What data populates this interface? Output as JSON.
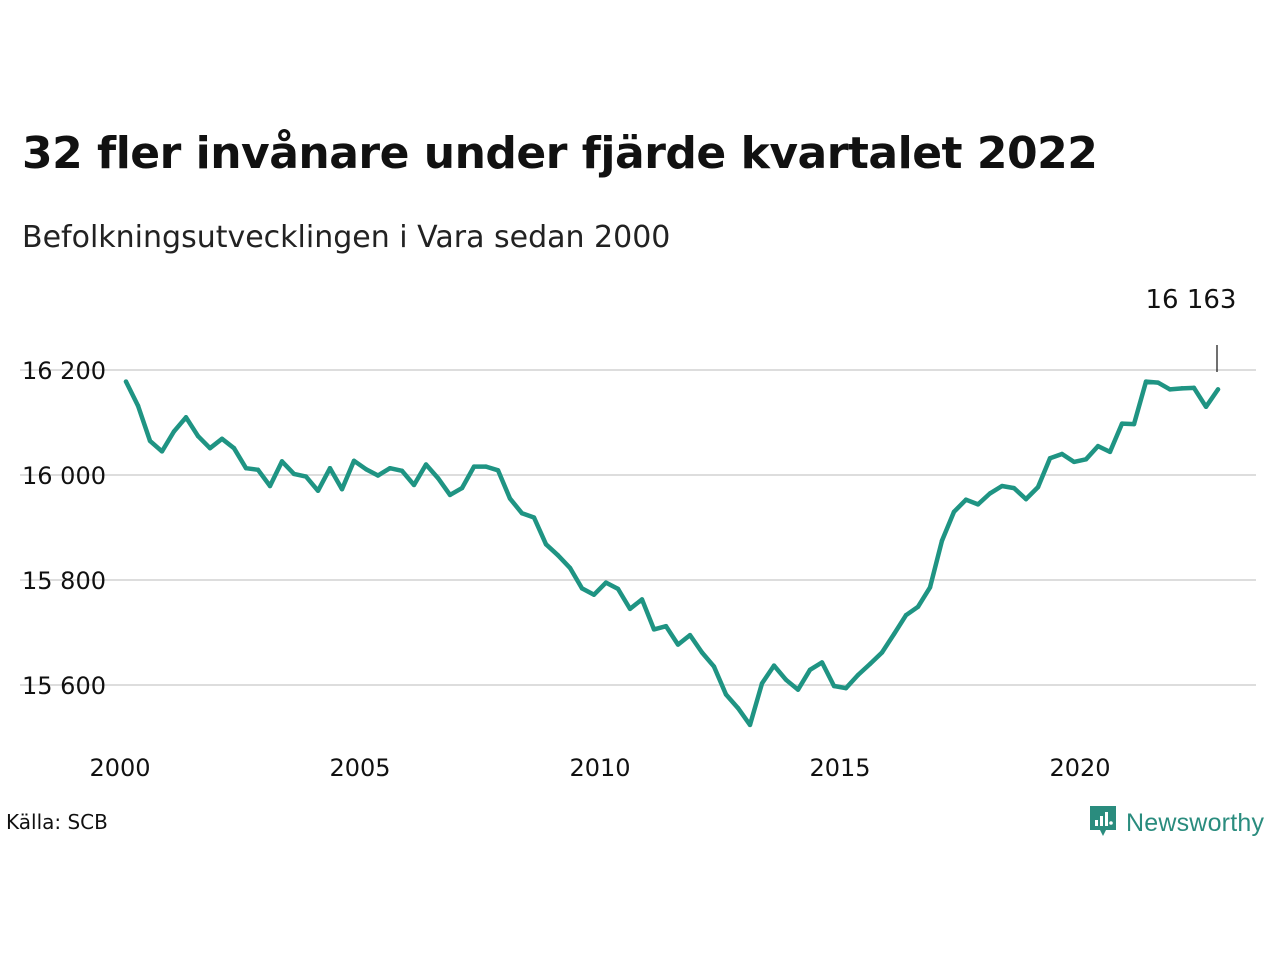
{
  "title": "32 fler invånare under fjärde kvartalet 2022",
  "subtitle": "Befolkningsutvecklingen i Vara sedan 2000",
  "source": "Källa: SCB",
  "brand": {
    "name": "Newsworthy",
    "icon": "newsworthy-logo-icon"
  },
  "colors": {
    "line": "#1f9483",
    "grid": "#dddddd",
    "brand": "#2a8c7e"
  },
  "chart_data": {
    "type": "line",
    "title": "32 fler invånare under fjärde kvartalet 2022",
    "subtitle": "Befolkningsutvecklingen i Vara sedan 2000",
    "xlabel": "",
    "ylabel": "",
    "xlim": [
      2000,
      2023.75
    ],
    "ylim": [
      15500,
      16250
    ],
    "x_ticks": [
      2000,
      2005,
      2010,
      2015,
      2020
    ],
    "y_ticks": [
      15600,
      15800,
      16000,
      16200
    ],
    "y_tick_labels": [
      "15 600",
      "15 800",
      "16 000",
      "16 200"
    ],
    "grid": true,
    "annotation": {
      "label": "16 163",
      "x": 2022.875,
      "y": 16163
    },
    "series": [
      {
        "x": [
          2000.125,
          2000.375,
          2000.625,
          2000.875,
          2001.125,
          2001.375,
          2001.625,
          2001.875,
          2002.125,
          2002.375,
          2002.625,
          2002.875,
          2003.125,
          2003.375,
          2003.625,
          2003.875,
          2004.125,
          2004.375,
          2004.625,
          2004.875,
          2005.125,
          2005.375,
          2005.625,
          2005.875,
          2006.125,
          2006.375,
          2006.625,
          2006.875,
          2007.125,
          2007.375,
          2007.625,
          2007.875,
          2008.125,
          2008.375,
          2008.625,
          2008.875,
          2009.125,
          2009.375,
          2009.625,
          2009.875,
          2010.125,
          2010.375,
          2010.625,
          2010.875,
          2011.125,
          2011.375,
          2011.625,
          2011.875,
          2012.125,
          2012.375,
          2012.625,
          2012.875,
          2013.125,
          2013.375,
          2013.625,
          2013.875,
          2014.125,
          2014.375,
          2014.625,
          2014.875,
          2015.125,
          2015.375,
          2015.625,
          2015.875,
          2016.125,
          2016.375,
          2016.625,
          2016.875,
          2017.125,
          2017.375,
          2017.625,
          2017.875,
          2018.125,
          2018.375,
          2018.625,
          2018.875,
          2019.125,
          2019.375,
          2019.625,
          2019.875,
          2020.125,
          2020.375,
          2020.625,
          2020.875,
          2021.125,
          2021.375,
          2021.625,
          2021.875,
          2022.125,
          2022.375,
          2022.625,
          2022.875
        ],
        "values": [
          16178,
          16132,
          16065,
          16045,
          16083,
          16110,
          16074,
          16051,
          16069,
          16051,
          16013,
          16010,
          15979,
          16026,
          16002,
          15997,
          15970,
          16013,
          15973,
          16027,
          16011,
          15999,
          16013,
          16008,
          15981,
          16020,
          15994,
          15962,
          15975,
          16016,
          16016,
          16009,
          15955,
          15927,
          15919,
          15868,
          15847,
          15823,
          15784,
          15772,
          15795,
          15783,
          15745,
          15763,
          15706,
          15712,
          15677,
          15695,
          15662,
          15635,
          15582,
          15556,
          15524,
          15603,
          15637,
          15610,
          15591,
          15629,
          15643,
          15598,
          15594,
          15619,
          15640,
          15662,
          15697,
          15733,
          15749,
          15786,
          15875,
          15930,
          15953,
          15944,
          15965,
          15979,
          15975,
          15954,
          15977,
          16032,
          16040,
          16025,
          16030,
          16055,
          16044,
          16098,
          16097,
          16178,
          16176,
          16163,
          16165,
          16166,
          16130,
          16163
        ]
      }
    ]
  }
}
